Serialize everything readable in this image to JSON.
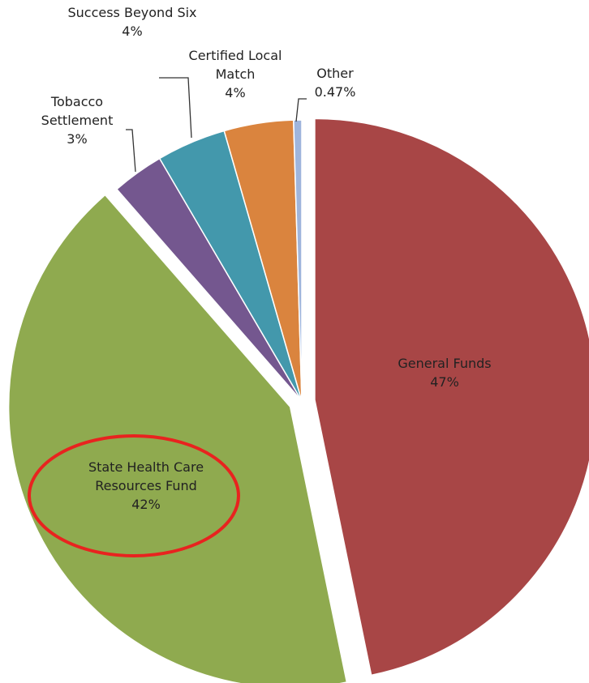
{
  "chart_data": {
    "type": "pie",
    "categories": [
      "General Funds",
      "State Health Care Resources Fund",
      "Tobacco Settlement",
      "Success Beyond Six",
      "Certified Local Match",
      "Other"
    ],
    "values": [
      47,
      42,
      3,
      4,
      4,
      0.47
    ],
    "value_labels": [
      "47%",
      "42%",
      "3%",
      "4%",
      "4%",
      "0.47%"
    ],
    "colors": [
      "#a84646",
      "#8faa4f",
      "#74578f",
      "#4398ac",
      "#da843e",
      "#9fb5dc"
    ]
  }
}
